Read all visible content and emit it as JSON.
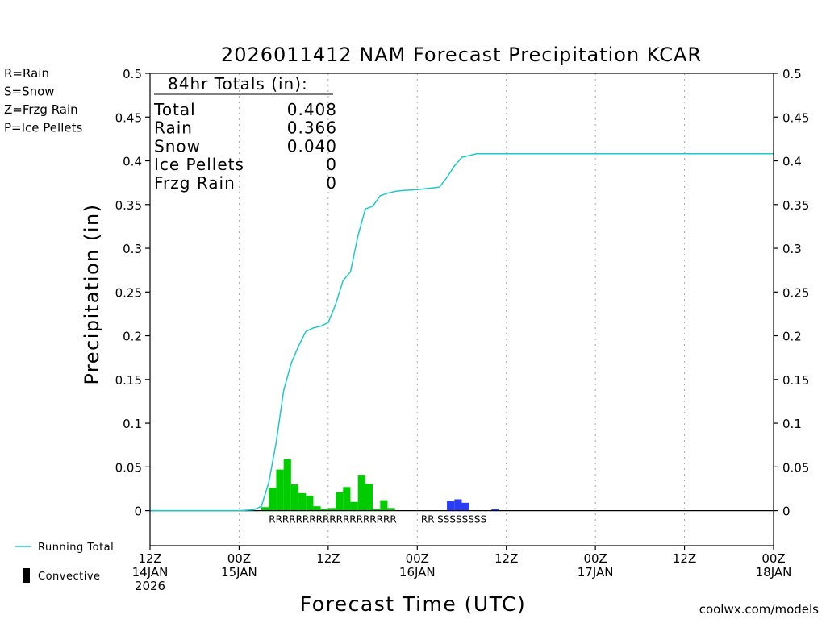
{
  "chart_data": {
    "type": "bar",
    "title": "2026011412 NAM Forecast Precipitation KCAR",
    "xlabel": "Forecast Time (UTC)",
    "ylabel": "Precipitation (in)",
    "ylim": [
      -0.04,
      0.5
    ],
    "y_ticks": [
      0,
      0.05,
      0.1,
      0.15,
      0.2,
      0.25,
      0.3,
      0.35,
      0.4,
      0.45,
      0.5
    ],
    "y_tick_labels": [
      "0",
      "0.05",
      "0.1",
      "0.15",
      "0.2",
      "0.25",
      "0.3",
      "0.35",
      "0.4",
      "0.45",
      "0.5"
    ],
    "x_unit": "forecast hour",
    "xlim": [
      0,
      84
    ],
    "x_ticks": [
      {
        "hour": 0,
        "line1": "12Z",
        "line2": "14JAN",
        "line3": "2026"
      },
      {
        "hour": 12,
        "line1": "00Z",
        "line2": "15JAN",
        "line3": ""
      },
      {
        "hour": 24,
        "line1": "12Z",
        "line2": "",
        "line3": ""
      },
      {
        "hour": 36,
        "line1": "00Z",
        "line2": "16JAN",
        "line3": ""
      },
      {
        "hour": 48,
        "line1": "12Z",
        "line2": "",
        "line3": ""
      },
      {
        "hour": 60,
        "line1": "00Z",
        "line2": "17JAN",
        "line3": ""
      },
      {
        "hour": 72,
        "line1": "12Z",
        "line2": "",
        "line3": ""
      },
      {
        "hour": 84,
        "line1": "00Z",
        "line2": "18JAN",
        "line3": ""
      }
    ],
    "bar_width_hours": 1,
    "bars": [
      {
        "hour": 15,
        "value": 0.004,
        "ptype": "R"
      },
      {
        "hour": 16,
        "value": 0.026,
        "ptype": "R"
      },
      {
        "hour": 17,
        "value": 0.047,
        "ptype": "R"
      },
      {
        "hour": 18,
        "value": 0.059,
        "ptype": "R"
      },
      {
        "hour": 19,
        "value": 0.03,
        "ptype": "R"
      },
      {
        "hour": 20,
        "value": 0.02,
        "ptype": "R"
      },
      {
        "hour": 21,
        "value": 0.017,
        "ptype": "R"
      },
      {
        "hour": 22,
        "value": 0.005,
        "ptype": "R"
      },
      {
        "hour": 23,
        "value": 0.002,
        "ptype": "R"
      },
      {
        "hour": 24,
        "value": 0.003,
        "ptype": "R"
      },
      {
        "hour": 25,
        "value": 0.021,
        "ptype": "R"
      },
      {
        "hour": 26,
        "value": 0.027,
        "ptype": "R"
      },
      {
        "hour": 27,
        "value": 0.01,
        "ptype": "R"
      },
      {
        "hour": 28,
        "value": 0.041,
        "ptype": "R"
      },
      {
        "hour": 29,
        "value": 0.031,
        "ptype": "R"
      },
      {
        "hour": 30,
        "value": 0.002,
        "ptype": "R"
      },
      {
        "hour": 31,
        "value": 0.012,
        "ptype": "R"
      },
      {
        "hour": 32,
        "value": 0.003,
        "ptype": "R"
      },
      {
        "hour": 40,
        "value": 0.011,
        "ptype": "S"
      },
      {
        "hour": 41,
        "value": 0.013,
        "ptype": "S"
      },
      {
        "hour": 42,
        "value": 0.009,
        "ptype": "S"
      },
      {
        "hour": 46,
        "value": 0.002,
        "ptype": "S"
      }
    ],
    "ptype_labels": [
      {
        "hour": 16,
        "text": "RRRRRRRRRRRRRRRRRRR",
        "ptype": "R"
      },
      {
        "hour": 36.5,
        "text": "RR",
        "ptype": "R"
      },
      {
        "hour": 38.7,
        "text": "SSSSSSSS",
        "ptype": "S"
      }
    ],
    "series": [
      {
        "name": "Running Total",
        "color": "#1ec8c8",
        "x": [
          0,
          12,
          14,
          15,
          16,
          17,
          18,
          19,
          20,
          21,
          22,
          23,
          24,
          25,
          26,
          27,
          28,
          29,
          30,
          31,
          32,
          33,
          34,
          36,
          38,
          39,
          40,
          41,
          42,
          43,
          44,
          45,
          46,
          48,
          84
        ],
        "y": [
          0,
          0,
          0.001,
          0.005,
          0.032,
          0.078,
          0.137,
          0.168,
          0.188,
          0.205,
          0.209,
          0.211,
          0.215,
          0.236,
          0.263,
          0.273,
          0.314,
          0.345,
          0.348,
          0.36,
          0.363,
          0.365,
          0.366,
          0.367,
          0.369,
          0.37,
          0.381,
          0.394,
          0.404,
          0.406,
          0.408,
          0.408,
          0.408,
          0.408,
          0.408
        ]
      }
    ],
    "totals": {
      "heading": "84hr Totals (in):",
      "rows": [
        {
          "label": "Total",
          "value": "0.408"
        },
        {
          "label": "Rain",
          "value": "0.366"
        },
        {
          "label": "Snow",
          "value": "0.040"
        },
        {
          "label": "Ice Pellets",
          "value": "0"
        },
        {
          "label": "Frzg Rain",
          "value": "0"
        }
      ]
    },
    "ptype_legend": [
      {
        "key": "R",
        "text": "R=Rain",
        "color": "#00cc00"
      },
      {
        "key": "S",
        "text": "S=Snow",
        "color": "#3c4cf0"
      },
      {
        "key": "Z",
        "text": "Z=Frzg Rain",
        "color": "#f08a3c"
      },
      {
        "key": "P",
        "text": "P=Ice Pellets",
        "color": "#ee2e98"
      }
    ],
    "series_legend": [
      {
        "text": "Running Total",
        "kind": "line",
        "color": "#1ec8c8"
      },
      {
        "text": "Convective",
        "kind": "bar",
        "color": "#000000"
      }
    ],
    "credit": "coolwx.com/models"
  },
  "colors": {
    "rain": "#00cc00",
    "snow": "#2a3cf4",
    "running_total": "#1ec8c8",
    "credit": "#cc3333"
  }
}
